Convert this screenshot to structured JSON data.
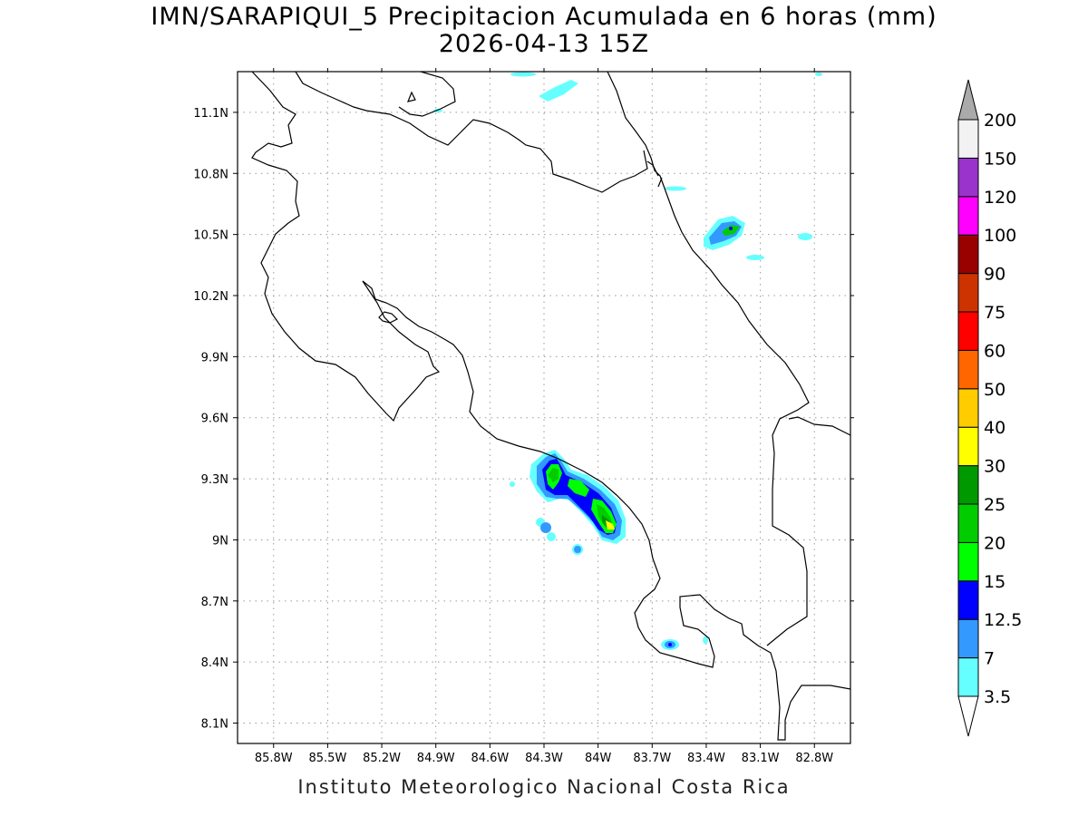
{
  "title": {
    "line1": "IMN/SARAPIQUI_5 Precipitacion Acumulada en 6 horas (mm)",
    "line2": "2026-04-13 15Z"
  },
  "credit": "Instituto Meteorologico Nacional Costa Rica",
  "map": {
    "lon_range": [
      -86.0,
      -82.6
    ],
    "lat_range": [
      8.0,
      11.3
    ],
    "x_ticks": [
      "85.8W",
      "85.5W",
      "85.2W",
      "84.9W",
      "84.6W",
      "84.3W",
      "84W",
      "83.7W",
      "83.4W",
      "83.1W",
      "82.8W"
    ],
    "y_ticks": [
      "11.1N",
      "10.8N",
      "10.5N",
      "10.2N",
      "9.9N",
      "9.6N",
      "9.3N",
      "9N",
      "8.7N",
      "8.4N",
      "8.1N"
    ],
    "grid": true,
    "coastline_color": "#000000"
  },
  "colorbar": {
    "levels": [
      "3.5",
      "7",
      "12.5",
      "15",
      "20",
      "25",
      "30",
      "40",
      "50",
      "60",
      "75",
      "90",
      "100",
      "120",
      "150",
      "200"
    ],
    "colors": [
      "#66ffff",
      "#3399ff",
      "#0000ff",
      "#00ff00",
      "#00cc00",
      "#009900",
      "#ffff00",
      "#ffcc00",
      "#ff6600",
      "#ff0000",
      "#cc3300",
      "#990000",
      "#ff00ff",
      "#9933cc",
      "#f2f2f2"
    ],
    "over_color": "#aaaaaa",
    "under_color": "#ffffff"
  }
}
